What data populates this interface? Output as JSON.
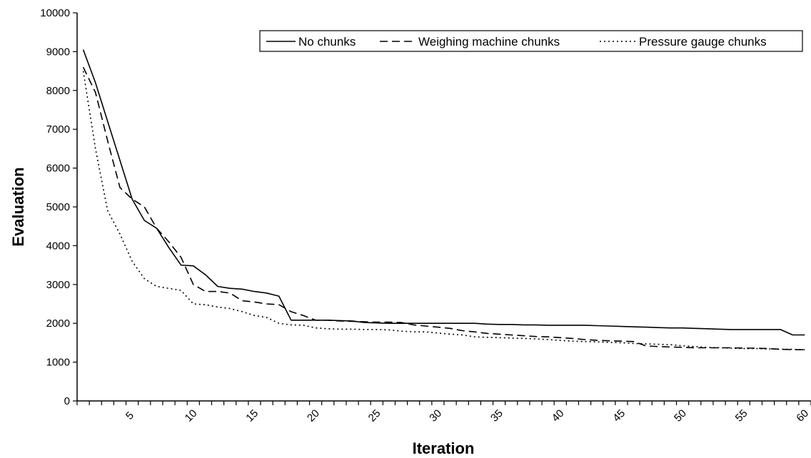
{
  "chart_data": {
    "type": "line",
    "title": "",
    "xlabel": "Iteration",
    "ylabel": "Evaluation",
    "xlim": [
      1,
      60
    ],
    "ylim": [
      0,
      10000
    ],
    "y_ticks": [
      0,
      1000,
      2000,
      3000,
      4000,
      5000,
      6000,
      7000,
      8000,
      9000,
      10000
    ],
    "x_tick_labels": [
      5,
      10,
      15,
      20,
      25,
      30,
      35,
      40,
      45,
      50,
      55,
      60
    ],
    "grid": false,
    "legend_position": "top-right",
    "x": [
      1,
      2,
      3,
      4,
      5,
      6,
      7,
      8,
      9,
      10,
      11,
      12,
      13,
      14,
      15,
      16,
      17,
      18,
      19,
      20,
      21,
      22,
      23,
      24,
      25,
      26,
      27,
      28,
      29,
      30,
      31,
      32,
      33,
      34,
      35,
      36,
      37,
      38,
      39,
      40,
      41,
      42,
      43,
      44,
      45,
      46,
      47,
      48,
      49,
      50,
      51,
      52,
      53,
      54,
      55,
      56,
      57,
      58,
      59,
      60
    ],
    "series": [
      {
        "name": "No chunks",
        "style": "solid",
        "values": [
          9050,
          8200,
          7200,
          6200,
          5200,
          4650,
          4450,
          3950,
          3500,
          3480,
          3250,
          2950,
          2900,
          2880,
          2820,
          2780,
          2700,
          2080,
          2080,
          2080,
          2080,
          2070,
          2060,
          2020,
          2010,
          2000,
          2000,
          2000,
          2000,
          2000,
          2000,
          2000,
          2000,
          1980,
          1970,
          1970,
          1960,
          1960,
          1950,
          1950,
          1950,
          1950,
          1940,
          1930,
          1920,
          1910,
          1900,
          1890,
          1880,
          1880,
          1870,
          1860,
          1850,
          1840,
          1840,
          1840,
          1840,
          1840,
          1700,
          1700
        ]
      },
      {
        "name": "Weighing machine chunks",
        "style": "dashed",
        "values": [
          8600,
          7950,
          6700,
          5500,
          5200,
          5000,
          4450,
          4100,
          3700,
          3000,
          2820,
          2820,
          2780,
          2580,
          2550,
          2500,
          2480,
          2300,
          2200,
          2080,
          2080,
          2060,
          2050,
          2040,
          2030,
          2030,
          2020,
          1960,
          1930,
          1900,
          1870,
          1810,
          1780,
          1740,
          1720,
          1700,
          1680,
          1660,
          1650,
          1630,
          1610,
          1580,
          1560,
          1550,
          1540,
          1530,
          1420,
          1400,
          1390,
          1380,
          1370,
          1370,
          1370,
          1370,
          1360,
          1360,
          1350,
          1330,
          1320,
          1320
        ]
      },
      {
        "name": "Pressure gauge chunks",
        "style": "dotted",
        "values": [
          8500,
          6500,
          4900,
          4300,
          3600,
          3150,
          2950,
          2900,
          2850,
          2500,
          2480,
          2420,
          2380,
          2300,
          2200,
          2150,
          2000,
          1960,
          1950,
          1880,
          1860,
          1850,
          1850,
          1840,
          1840,
          1830,
          1800,
          1780,
          1780,
          1750,
          1720,
          1700,
          1650,
          1640,
          1630,
          1620,
          1610,
          1600,
          1580,
          1560,
          1540,
          1530,
          1520,
          1510,
          1500,
          1480,
          1470,
          1460,
          1450,
          1420,
          1400,
          1380,
          1370,
          1360,
          1350,
          1350,
          1340,
          1330,
          1330,
          1320
        ]
      }
    ]
  },
  "legend": {
    "items": [
      "No chunks",
      "Weighing machine chunks",
      "Pressure gauge chunks"
    ]
  },
  "colors": {
    "line": "#000000",
    "background": "#ffffff"
  }
}
